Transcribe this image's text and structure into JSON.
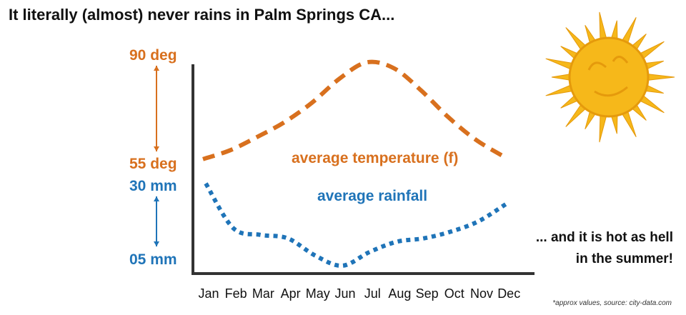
{
  "title": "It literally (almost) never rains in Palm Springs CA...",
  "annotation_lines": [
    "... and it is hot as hell",
    "in the summer!"
  ],
  "source_note": "*approx values, source: city-data.com",
  "colors": {
    "temperature": "#d8701e",
    "rainfall": "#1f74b8",
    "axis": "#333333",
    "sun": "#f6b81a",
    "sun_outline": "#e59a0c"
  },
  "icons": {
    "decoration": "sun-icon"
  },
  "chart_data": {
    "type": "line",
    "categories": [
      "Jan",
      "Feb",
      "Mar",
      "Apr",
      "May",
      "Jun",
      "Jul",
      "Aug",
      "Sep",
      "Oct",
      "Nov",
      "Dec"
    ],
    "grid": false,
    "legend": "inline labels",
    "series": [
      {
        "name": "average temperature (f)",
        "unit": "deg",
        "values": [
          56,
          59,
          63.5,
          68.5,
          75,
          83,
          88.5,
          86.5,
          79,
          70,
          62.5,
          57
        ],
        "axis_labels": [
          "90 deg",
          "55 deg"
        ],
        "range": [
          55,
          90
        ],
        "style": "dashed"
      },
      {
        "name": "average rainfall",
        "unit": "mm",
        "values": [
          29,
          16,
          14,
          13,
          8,
          5,
          9,
          12,
          13,
          15,
          18,
          23
        ],
        "axis_labels": [
          "30 mm",
          "05 mm"
        ],
        "range": [
          5,
          30
        ],
        "style": "dotted"
      }
    ]
  }
}
